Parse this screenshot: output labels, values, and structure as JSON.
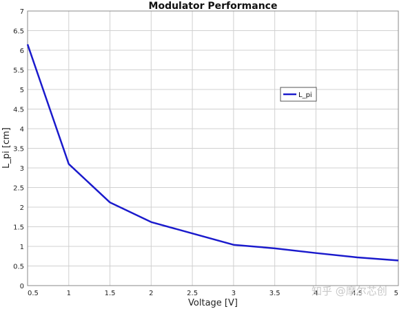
{
  "chart_data": {
    "type": "line",
    "title": "Modulator Performance",
    "xlabel": "Voltage [V]",
    "ylabel": "L_pi [cm]",
    "xlim": [
      0.5,
      5
    ],
    "ylim": [
      0,
      7
    ],
    "xticks": [
      "0.5",
      "1",
      "1.5",
      "2",
      "2.5",
      "3",
      "3.5",
      "4",
      "4.5",
      "5"
    ],
    "yticks": [
      "0",
      "0.5",
      "1",
      "1.5",
      "2",
      "2.5",
      "3",
      "3.5",
      "4",
      "4.5",
      "5",
      "5.5",
      "6",
      "6.5",
      "7"
    ],
    "grid": true,
    "legend_position": "top-right",
    "series": [
      {
        "name": "L_pi",
        "color": "#1a1acc",
        "x": [
          0.5,
          1,
          1.5,
          2,
          2.5,
          3,
          3.5,
          4,
          4.5,
          5
        ],
        "y": [
          6.15,
          3.1,
          2.12,
          1.62,
          1.33,
          1.04,
          0.95,
          0.83,
          0.72,
          0.64
        ]
      }
    ]
  },
  "watermark": "知乎 @摩尔芯创"
}
